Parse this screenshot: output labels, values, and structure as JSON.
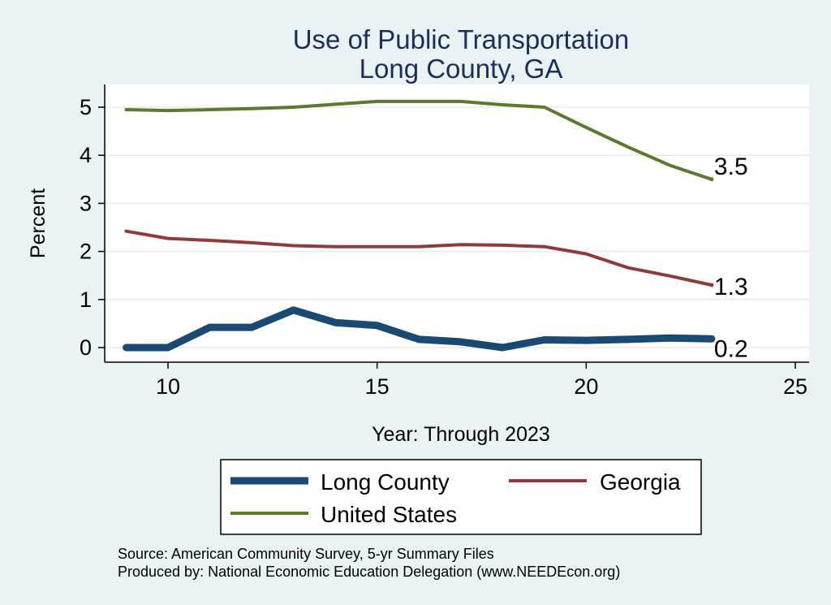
{
  "chart_data": {
    "type": "line",
    "title": "Use of Public Transportation",
    "subtitle": "Long County, GA",
    "xlabel": "Year: Through 2023",
    "ylabel": "Percent",
    "xlim": [
      9,
      25
    ],
    "ylim": [
      0,
      5
    ],
    "xticks": [
      "10",
      "15",
      "20",
      "25"
    ],
    "yticks": [
      "0",
      "1",
      "2",
      "3",
      "4",
      "5"
    ],
    "grid": true,
    "x": [
      9,
      10,
      11,
      12,
      13,
      14,
      15,
      16,
      17,
      18,
      19,
      20,
      21,
      22,
      23
    ],
    "series": [
      {
        "name": "Long County",
        "color": "#1a4a72",
        "values": [
          0.0,
          0.0,
          0.42,
          0.42,
          0.78,
          0.52,
          0.46,
          0.17,
          0.12,
          0.0,
          0.16,
          0.15,
          0.17,
          0.2,
          0.18
        ],
        "end_label": "0.2"
      },
      {
        "name": "Georgia",
        "color": "#903a3c",
        "values": [
          2.42,
          2.27,
          2.23,
          2.18,
          2.12,
          2.1,
          2.1,
          2.1,
          2.14,
          2.13,
          2.1,
          1.95,
          1.66,
          1.49,
          1.3
        ],
        "end_label": "1.3"
      },
      {
        "name": "United States",
        "color": "#5a7a2e",
        "values": [
          4.95,
          4.93,
          4.95,
          4.97,
          5.0,
          5.06,
          5.12,
          5.12,
          5.12,
          5.05,
          5.0,
          4.58,
          4.17,
          3.79,
          3.5
        ],
        "end_label": "3.5"
      }
    ],
    "legend_position": "bottom",
    "notes": [
      "Source: American Community Survey, 5-yr Summary Files",
      "Produced by: National Economic Education Delegation (www.NEEDEcon.org)"
    ]
  }
}
